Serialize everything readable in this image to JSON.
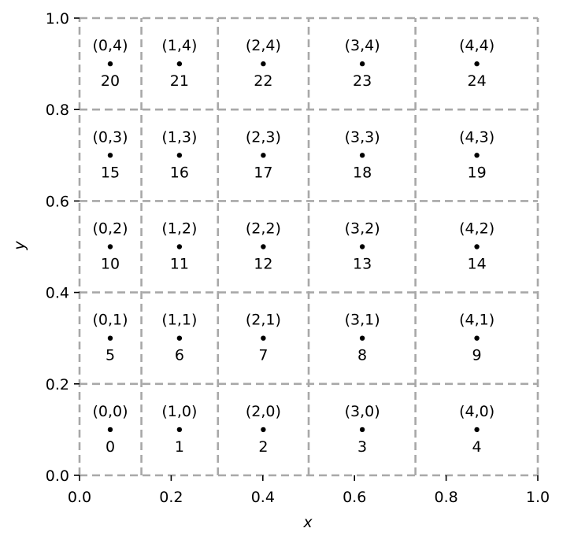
{
  "chart_data": {
    "type": "scatter",
    "title": "",
    "xlabel": "x",
    "ylabel": "y",
    "xlim": [
      0,
      1
    ],
    "ylim": [
      0,
      1
    ],
    "xticks": [
      "0.0",
      "0.2",
      "0.4",
      "0.6",
      "0.8",
      "1.0"
    ],
    "yticks": [
      "0.0",
      "0.2",
      "0.4",
      "0.6",
      "0.8",
      "1.0"
    ],
    "x_edges": [
      0.0,
      0.135,
      0.302,
      0.5,
      0.733,
      1.0
    ],
    "y_edges": [
      0.0,
      0.2,
      0.4,
      0.6,
      0.8,
      1.0
    ],
    "grid": "dashed cell boundaries",
    "colors": {
      "points": "#000000",
      "grid": "#a8a8a8"
    },
    "points": [
      {
        "x": 0.067,
        "y": 0.1,
        "coord": "(0,0)",
        "index": "0"
      },
      {
        "x": 0.218,
        "y": 0.1,
        "coord": "(1,0)",
        "index": "1"
      },
      {
        "x": 0.401,
        "y": 0.1,
        "coord": "(2,0)",
        "index": "2"
      },
      {
        "x": 0.617,
        "y": 0.1,
        "coord": "(3,0)",
        "index": "3"
      },
      {
        "x": 0.867,
        "y": 0.1,
        "coord": "(4,0)",
        "index": "4"
      },
      {
        "x": 0.067,
        "y": 0.3,
        "coord": "(0,1)",
        "index": "5"
      },
      {
        "x": 0.218,
        "y": 0.3,
        "coord": "(1,1)",
        "index": "6"
      },
      {
        "x": 0.401,
        "y": 0.3,
        "coord": "(2,1)",
        "index": "7"
      },
      {
        "x": 0.617,
        "y": 0.3,
        "coord": "(3,1)",
        "index": "8"
      },
      {
        "x": 0.867,
        "y": 0.3,
        "coord": "(4,1)",
        "index": "9"
      },
      {
        "x": 0.067,
        "y": 0.5,
        "coord": "(0,2)",
        "index": "10"
      },
      {
        "x": 0.218,
        "y": 0.5,
        "coord": "(1,2)",
        "index": "11"
      },
      {
        "x": 0.401,
        "y": 0.5,
        "coord": "(2,2)",
        "index": "12"
      },
      {
        "x": 0.617,
        "y": 0.5,
        "coord": "(3,2)",
        "index": "13"
      },
      {
        "x": 0.867,
        "y": 0.5,
        "coord": "(4,2)",
        "index": "14"
      },
      {
        "x": 0.067,
        "y": 0.7,
        "coord": "(0,3)",
        "index": "15"
      },
      {
        "x": 0.218,
        "y": 0.7,
        "coord": "(1,3)",
        "index": "16"
      },
      {
        "x": 0.401,
        "y": 0.7,
        "coord": "(2,3)",
        "index": "17"
      },
      {
        "x": 0.617,
        "y": 0.7,
        "coord": "(3,3)",
        "index": "18"
      },
      {
        "x": 0.867,
        "y": 0.7,
        "coord": "(4,3)",
        "index": "19"
      },
      {
        "x": 0.067,
        "y": 0.9,
        "coord": "(0,4)",
        "index": "20"
      },
      {
        "x": 0.218,
        "y": 0.9,
        "coord": "(1,4)",
        "index": "21"
      },
      {
        "x": 0.401,
        "y": 0.9,
        "coord": "(2,4)",
        "index": "22"
      },
      {
        "x": 0.617,
        "y": 0.9,
        "coord": "(3,4)",
        "index": "23"
      },
      {
        "x": 0.867,
        "y": 0.9,
        "coord": "(4,4)",
        "index": "24"
      }
    ]
  }
}
